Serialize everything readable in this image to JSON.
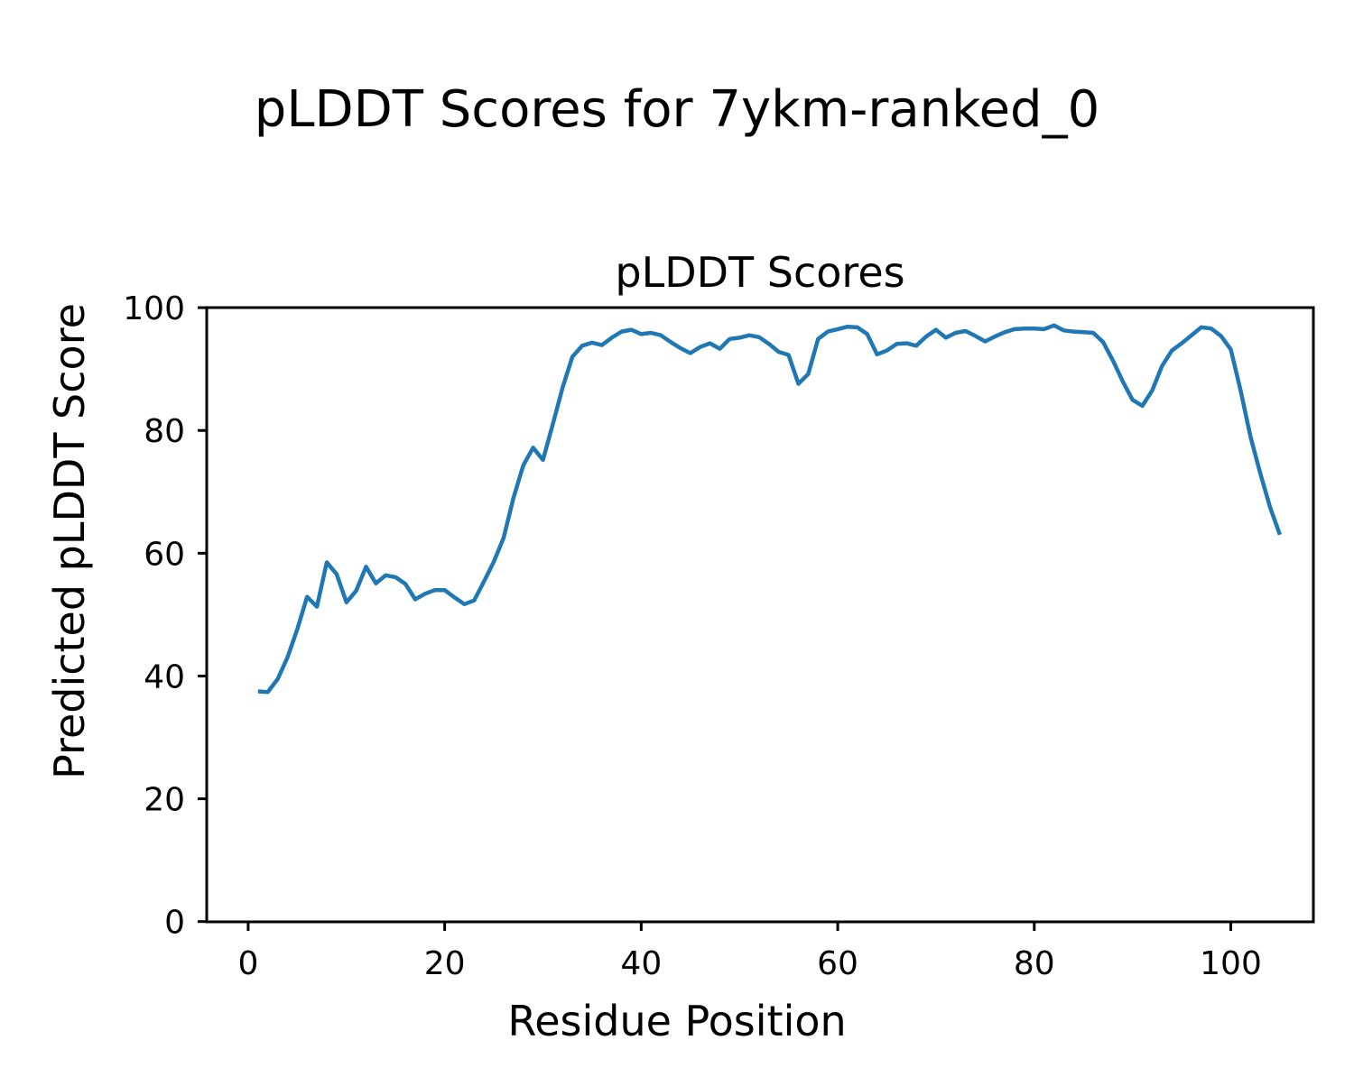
{
  "figure": {
    "suptitle": "pLDDT Scores for 7ykm-ranked_0",
    "background_color": "#ffffff"
  },
  "chart_data": {
    "type": "line",
    "title": "pLDDT Scores",
    "xlabel": "Residue Position",
    "ylabel": "Predicted pLDDT Score",
    "xticks": [
      0,
      20,
      40,
      60,
      80,
      100
    ],
    "yticks": [
      0,
      20,
      40,
      60,
      80,
      100
    ],
    "ylim": [
      0,
      100
    ],
    "xlim": [
      -4.2,
      108.4
    ],
    "grid": false,
    "legend": null,
    "line_color": "#1f77b4",
    "axis_color": "#000000",
    "series": [
      {
        "name": "pLDDT",
        "x": [
          1,
          2,
          3,
          4,
          5,
          6,
          7,
          8,
          9,
          10,
          11,
          12,
          13,
          14,
          15,
          16,
          17,
          18,
          19,
          20,
          21,
          22,
          23,
          24,
          25,
          26,
          27,
          28,
          29,
          30,
          31,
          32,
          33,
          34,
          35,
          36,
          37,
          38,
          39,
          40,
          41,
          42,
          43,
          44,
          45,
          46,
          47,
          48,
          49,
          50,
          51,
          52,
          53,
          54,
          55,
          56,
          57,
          58,
          59,
          60,
          61,
          62,
          63,
          64,
          65,
          66,
          67,
          68,
          69,
          70,
          71,
          72,
          73,
          74,
          75,
          76,
          77,
          78,
          79,
          80,
          81,
          82,
          83,
          84,
          85,
          86,
          87,
          88,
          89,
          90,
          91,
          92,
          93,
          94,
          95,
          96,
          97,
          98,
          99,
          100,
          101,
          102,
          103,
          104,
          105
        ],
        "y": [
          37.5,
          37.4,
          39.5,
          43.0,
          47.6,
          52.9,
          51.3,
          58.5,
          56.6,
          52.0,
          53.9,
          57.8,
          55.1,
          56.4,
          56.1,
          55.0,
          52.5,
          53.4,
          54.0,
          54.0,
          52.8,
          51.7,
          52.3,
          55.4,
          58.6,
          62.5,
          69.0,
          74.3,
          77.2,
          75.2,
          81.0,
          87.0,
          92.0,
          93.8,
          94.3,
          93.9,
          95.1,
          96.1,
          96.4,
          95.7,
          95.9,
          95.5,
          94.4,
          93.4,
          92.6,
          93.6,
          94.2,
          93.3,
          94.9,
          95.1,
          95.5,
          95.2,
          94.1,
          92.8,
          92.3,
          87.6,
          89.2,
          94.9,
          96.1,
          96.5,
          96.9,
          96.8,
          95.7,
          92.4,
          93.0,
          94.1,
          94.2,
          93.8,
          95.3,
          96.4,
          95.1,
          95.9,
          96.2,
          95.4,
          94.5,
          95.3,
          96.0,
          96.5,
          96.6,
          96.6,
          96.5,
          97.1,
          96.3,
          96.1,
          96.0,
          95.9,
          94.4,
          91.4,
          88.0,
          85.0,
          84.0,
          86.5,
          90.5,
          93.0,
          94.2,
          95.5,
          96.8,
          96.6,
          95.4,
          93.2,
          86.5,
          79.0,
          73.0,
          67.5,
          63.0
        ]
      }
    ]
  }
}
